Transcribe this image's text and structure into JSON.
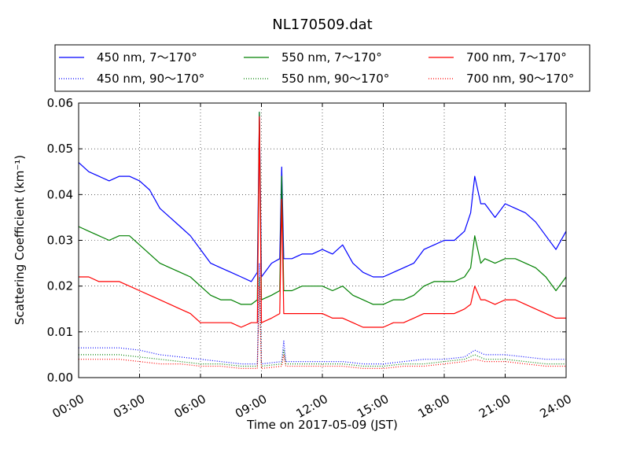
{
  "chart_data": {
    "type": "line",
    "title": "NL170509.dat",
    "xlabel": "Time on 2017-05-09 (JST)",
    "ylabel": "Scattering Coefficient (km⁻¹)",
    "xlim": [
      0,
      24
    ],
    "ylim": [
      0,
      0.06
    ],
    "grid": true,
    "legend_position": "top",
    "x_ticks": [
      "00:00",
      "03:00",
      "06:00",
      "09:00",
      "12:00",
      "15:00",
      "18:00",
      "21:00",
      "24:00"
    ],
    "y_ticks": [
      "0.00",
      "0.01",
      "0.02",
      "0.03",
      "0.04",
      "0.05",
      "0.06"
    ],
    "series": [
      {
        "name": "450 nm, 7～170°",
        "color": "#0000ff",
        "style": "solid",
        "x": [
          0,
          0.5,
          1,
          1.5,
          2,
          2.5,
          3,
          3.5,
          4,
          4.5,
          5,
          5.5,
          6,
          6.5,
          7,
          7.5,
          8,
          8.5,
          8.8,
          8.9,
          9,
          9.5,
          9.9,
          10,
          10.1,
          10.5,
          11,
          11.5,
          12,
          12.5,
          13,
          13.5,
          14,
          14.5,
          15,
          15.5,
          16,
          16.5,
          17,
          17.5,
          18,
          18.5,
          19,
          19.3,
          19.5,
          19.8,
          20,
          20.5,
          21,
          21.5,
          22,
          22.5,
          23,
          23.5,
          24
        ],
        "y": [
          0.047,
          0.045,
          0.044,
          0.043,
          0.044,
          0.044,
          0.043,
          0.041,
          0.037,
          0.035,
          0.033,
          0.031,
          0.028,
          0.025,
          0.024,
          0.023,
          0.022,
          0.021,
          0.023,
          0.058,
          0.022,
          0.025,
          0.026,
          0.046,
          0.026,
          0.026,
          0.027,
          0.027,
          0.028,
          0.027,
          0.029,
          0.025,
          0.023,
          0.022,
          0.022,
          0.023,
          0.024,
          0.025,
          0.028,
          0.029,
          0.03,
          0.03,
          0.032,
          0.036,
          0.044,
          0.038,
          0.038,
          0.035,
          0.038,
          0.037,
          0.036,
          0.034,
          0.031,
          0.028,
          0.032
        ]
      },
      {
        "name": "550 nm, 7～170°",
        "color": "#008000",
        "style": "solid",
        "x": [
          0,
          0.5,
          1,
          1.5,
          2,
          2.5,
          3,
          3.5,
          4,
          4.5,
          5,
          5.5,
          6,
          6.5,
          7,
          7.5,
          8,
          8.5,
          8.8,
          8.9,
          9,
          9.5,
          9.9,
          10,
          10.1,
          10.5,
          11,
          11.5,
          12,
          12.5,
          13,
          13.5,
          14,
          14.5,
          15,
          15.5,
          16,
          16.5,
          17,
          17.5,
          18,
          18.5,
          19,
          19.3,
          19.5,
          19.8,
          20,
          20.5,
          21,
          21.5,
          22,
          22.5,
          23,
          23.5,
          24
        ],
        "y": [
          0.033,
          0.032,
          0.031,
          0.03,
          0.031,
          0.031,
          0.029,
          0.027,
          0.025,
          0.024,
          0.023,
          0.022,
          0.02,
          0.018,
          0.017,
          0.017,
          0.016,
          0.016,
          0.017,
          0.058,
          0.017,
          0.018,
          0.019,
          0.044,
          0.019,
          0.019,
          0.02,
          0.02,
          0.02,
          0.019,
          0.02,
          0.018,
          0.017,
          0.016,
          0.016,
          0.017,
          0.017,
          0.018,
          0.02,
          0.021,
          0.021,
          0.021,
          0.022,
          0.024,
          0.031,
          0.025,
          0.026,
          0.025,
          0.026,
          0.026,
          0.025,
          0.024,
          0.022,
          0.019,
          0.022
        ]
      },
      {
        "name": "700 nm, 7～170°",
        "color": "#ff0000",
        "style": "solid",
        "x": [
          0,
          0.5,
          1,
          1.5,
          2,
          2.5,
          3,
          3.5,
          4,
          4.5,
          5,
          5.5,
          6,
          6.5,
          7,
          7.5,
          8,
          8.5,
          8.8,
          8.9,
          9,
          9.5,
          9.9,
          10,
          10.1,
          10.5,
          11,
          11.5,
          12,
          12.5,
          13,
          13.5,
          14,
          14.5,
          15,
          15.5,
          16,
          16.5,
          17,
          17.5,
          18,
          18.5,
          19,
          19.3,
          19.5,
          19.8,
          20,
          20.5,
          21,
          21.5,
          22,
          22.5,
          23,
          23.5,
          24
        ],
        "y": [
          0.022,
          0.022,
          0.021,
          0.021,
          0.021,
          0.02,
          0.019,
          0.018,
          0.017,
          0.016,
          0.015,
          0.014,
          0.012,
          0.012,
          0.012,
          0.012,
          0.011,
          0.012,
          0.012,
          0.057,
          0.012,
          0.013,
          0.014,
          0.039,
          0.014,
          0.014,
          0.014,
          0.014,
          0.014,
          0.013,
          0.013,
          0.012,
          0.011,
          0.011,
          0.011,
          0.012,
          0.012,
          0.013,
          0.014,
          0.014,
          0.014,
          0.014,
          0.015,
          0.016,
          0.02,
          0.017,
          0.017,
          0.016,
          0.017,
          0.017,
          0.016,
          0.015,
          0.014,
          0.013,
          0.013
        ]
      },
      {
        "name": "450 nm, 90～170°",
        "color": "#0000ff",
        "style": "dotted",
        "x": [
          0,
          1,
          2,
          3,
          4,
          5,
          6,
          7,
          8,
          8.8,
          8.9,
          9,
          10,
          10.1,
          10.2,
          11,
          12,
          13,
          14,
          15,
          16,
          17,
          18,
          19,
          19.5,
          20,
          21,
          22,
          23,
          24
        ],
        "y": [
          0.0065,
          0.0065,
          0.0065,
          0.006,
          0.005,
          0.0045,
          0.004,
          0.0035,
          0.003,
          0.003,
          0.025,
          0.003,
          0.0035,
          0.008,
          0.0035,
          0.0035,
          0.0035,
          0.0035,
          0.003,
          0.003,
          0.0035,
          0.004,
          0.004,
          0.0045,
          0.006,
          0.005,
          0.005,
          0.0045,
          0.004,
          0.004
        ]
      },
      {
        "name": "550 nm, 90～170°",
        "color": "#008000",
        "style": "dotted",
        "x": [
          0,
          1,
          2,
          3,
          4,
          5,
          6,
          7,
          8,
          8.8,
          8.9,
          9,
          10,
          10.1,
          10.2,
          11,
          12,
          13,
          14,
          15,
          16,
          17,
          18,
          19,
          19.5,
          20,
          21,
          22,
          23,
          24
        ],
        "y": [
          0.005,
          0.005,
          0.005,
          0.0045,
          0.004,
          0.0035,
          0.003,
          0.003,
          0.0025,
          0.0025,
          0.022,
          0.0025,
          0.003,
          0.006,
          0.003,
          0.003,
          0.003,
          0.003,
          0.0025,
          0.0025,
          0.003,
          0.003,
          0.0035,
          0.004,
          0.005,
          0.004,
          0.004,
          0.0035,
          0.003,
          0.003
        ]
      },
      {
        "name": "700 nm, 90～170°",
        "color": "#ff0000",
        "style": "dotted",
        "x": [
          0,
          1,
          2,
          3,
          4,
          5,
          6,
          7,
          8,
          8.8,
          8.9,
          9,
          10,
          10.1,
          10.2,
          11,
          12,
          13,
          14,
          15,
          16,
          17,
          18,
          19,
          19.5,
          20,
          21,
          22,
          23,
          24
        ],
        "y": [
          0.004,
          0.004,
          0.004,
          0.0035,
          0.003,
          0.003,
          0.0025,
          0.0025,
          0.002,
          0.002,
          0.02,
          0.002,
          0.0025,
          0.005,
          0.0025,
          0.0025,
          0.0025,
          0.0025,
          0.002,
          0.002,
          0.0025,
          0.0025,
          0.003,
          0.0035,
          0.004,
          0.0035,
          0.0035,
          0.003,
          0.0025,
          0.0025
        ]
      }
    ]
  }
}
